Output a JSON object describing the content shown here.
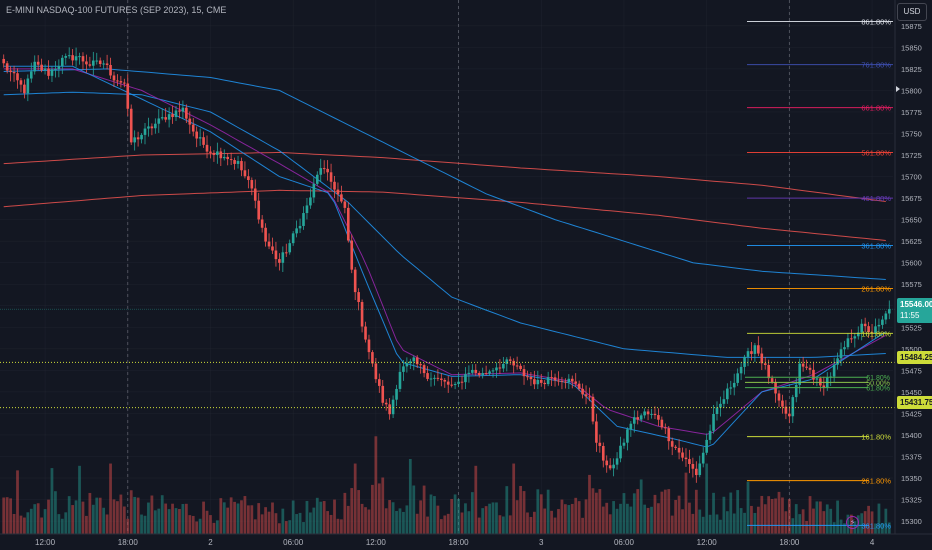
{
  "title": "E-MINI NASDAQ-100 FUTURES (SEP 2023), 15, CME",
  "currency_button": "USD",
  "colors": {
    "background": "#131722",
    "bull": "#26a69a",
    "bear": "#ef5350",
    "grid": "#2a2e39",
    "text": "#b2b5be"
  },
  "icons": [
    "lightning-icon"
  ],
  "price_tags": {
    "last_price": "15546.00",
    "countdown": "11:55",
    "level_1": "15484.25",
    "level_2": "15431.75"
  },
  "chart_data": {
    "type": "candlestick",
    "title": "E-MINI NASDAQ-100 FUTURES (SEP 2023), 15, CME",
    "ylim": [
      15285,
      15905
    ],
    "y_ticks": [
      15875,
      15850,
      15825,
      15800,
      15775,
      15750,
      15725,
      15700,
      15675,
      15650,
      15625,
      15600,
      15575,
      15550,
      15525,
      15500,
      15475,
      15450,
      15425,
      15400,
      15375,
      15350,
      15325,
      15300
    ],
    "x_ticks": [
      "12:00",
      "18:00",
      "2",
      "06:00",
      "12:00",
      "18:00",
      "3",
      "06:00",
      "12:00",
      "18:00",
      "4"
    ],
    "x_tick_bar_index": [
      12,
      36,
      60,
      84,
      108,
      132,
      156,
      180,
      204,
      228,
      252
    ],
    "session_separator_bar_index": [
      36,
      132,
      228
    ],
    "bars": 258,
    "anchors": {
      "close": [
        [
          0,
          15830
        ],
        [
          3,
          15815
        ],
        [
          6,
          15800
        ],
        [
          9,
          15830
        ],
        [
          13,
          15820
        ],
        [
          17,
          15835
        ],
        [
          21,
          15840
        ],
        [
          25,
          15830
        ],
        [
          29,
          15832
        ],
        [
          32,
          15815
        ],
        [
          35,
          15808
        ],
        [
          37,
          15740
        ],
        [
          42,
          15755
        ],
        [
          47,
          15770
        ],
        [
          52,
          15778
        ],
        [
          56,
          15745
        ],
        [
          60,
          15730
        ],
        [
          64,
          15725
        ],
        [
          68,
          15715
        ],
        [
          72,
          15685
        ],
        [
          76,
          15625
        ],
        [
          80,
          15600
        ],
        [
          84,
          15630
        ],
        [
          88,
          15665
        ],
        [
          92,
          15712
        ],
        [
          96,
          15688
        ],
        [
          99,
          15660
        ],
        [
          101,
          15590
        ],
        [
          104,
          15530
        ],
        [
          107,
          15480
        ],
        [
          110,
          15440
        ],
        [
          112,
          15425
        ],
        [
          115,
          15475
        ],
        [
          119,
          15485
        ],
        [
          123,
          15470
        ],
        [
          127,
          15462
        ],
        [
          131,
          15455
        ],
        [
          135,
          15475
        ],
        [
          139,
          15470
        ],
        [
          143,
          15480
        ],
        [
          147,
          15484
        ],
        [
          151,
          15470
        ],
        [
          155,
          15460
        ],
        [
          159,
          15468
        ],
        [
          163,
          15465
        ],
        [
          167,
          15455
        ],
        [
          170,
          15440
        ],
        [
          172,
          15395
        ],
        [
          175,
          15360
        ],
        [
          178,
          15372
        ],
        [
          182,
          15415
        ],
        [
          186,
          15425
        ],
        [
          190,
          15420
        ],
        [
          194,
          15390
        ],
        [
          198,
          15370
        ],
        [
          201,
          15355
        ],
        [
          203,
          15380
        ],
        [
          206,
          15420
        ],
        [
          210,
          15450
        ],
        [
          214,
          15480
        ],
        [
          218,
          15505
        ],
        [
          222,
          15468
        ],
        [
          225,
          15435
        ],
        [
          228,
          15420
        ],
        [
          231,
          15480
        ],
        [
          234,
          15475
        ],
        [
          237,
          15455
        ],
        [
          240,
          15470
        ],
        [
          243,
          15495
        ],
        [
          246,
          15515
        ],
        [
          249,
          15525
        ],
        [
          252,
          15520
        ],
        [
          254,
          15525
        ],
        [
          257,
          15546
        ]
      ],
      "volume": [
        [
          0,
          140
        ],
        [
          10,
          160
        ],
        [
          20,
          150
        ],
        [
          30,
          170
        ],
        [
          40,
          140
        ],
        [
          50,
          130
        ],
        [
          60,
          120
        ],
        [
          70,
          130
        ],
        [
          80,
          110
        ],
        [
          90,
          120
        ],
        [
          100,
          160
        ],
        [
          105,
          220
        ],
        [
          110,
          250
        ],
        [
          115,
          200
        ],
        [
          120,
          180
        ],
        [
          130,
          150
        ],
        [
          140,
          180
        ],
        [
          150,
          170
        ],
        [
          160,
          150
        ],
        [
          170,
          170
        ],
        [
          180,
          160
        ],
        [
          190,
          150
        ],
        [
          200,
          170
        ],
        [
          210,
          150
        ],
        [
          220,
          160
        ],
        [
          230,
          140
        ],
        [
          240,
          120
        ],
        [
          250,
          110
        ],
        [
          257,
          120
        ]
      ]
    },
    "spikes": [
      [
        4,
        280
      ],
      [
        14,
        290
      ],
      [
        22,
        300
      ],
      [
        31,
        310
      ],
      [
        102,
        310
      ],
      [
        108,
        430
      ],
      [
        118,
        330
      ],
      [
        137,
        300
      ],
      [
        148,
        310
      ],
      [
        170,
        260
      ],
      [
        185,
        240
      ],
      [
        198,
        270
      ],
      [
        204,
        310
      ],
      [
        216,
        230
      ]
    ],
    "moving_averages": [
      {
        "color": "#ef5350",
        "points": [
          [
            0,
            15715
          ],
          [
            40,
            15725
          ],
          [
            80,
            15728
          ],
          [
            110,
            15722
          ],
          [
            150,
            15710
          ],
          [
            190,
            15700
          ],
          [
            220,
            15690
          ],
          [
            258,
            15670
          ]
        ]
      },
      {
        "color": "#ef5350",
        "points": [
          [
            0,
            15665
          ],
          [
            40,
            15678
          ],
          [
            80,
            15684
          ],
          [
            110,
            15682
          ],
          [
            150,
            15670
          ],
          [
            190,
            15655
          ],
          [
            220,
            15640
          ],
          [
            258,
            15625
          ]
        ]
      },
      {
        "color": "#2196f3",
        "points": [
          [
            0,
            15822
          ],
          [
            30,
            15825
          ],
          [
            60,
            15815
          ],
          [
            80,
            15800
          ],
          [
            100,
            15760
          ],
          [
            120,
            15720
          ],
          [
            140,
            15680
          ],
          [
            160,
            15650
          ],
          [
            180,
            15625
          ],
          [
            200,
            15600
          ],
          [
            220,
            15590
          ],
          [
            258,
            15580
          ]
        ]
      },
      {
        "color": "#2196f3",
        "points": [
          [
            0,
            15795
          ],
          [
            20,
            15798
          ],
          [
            40,
            15795
          ],
          [
            60,
            15775
          ],
          [
            80,
            15730
          ],
          [
            100,
            15670
          ],
          [
            115,
            15610
          ],
          [
            130,
            15560
          ],
          [
            150,
            15530
          ],
          [
            180,
            15500
          ],
          [
            210,
            15490
          ],
          [
            235,
            15490
          ],
          [
            258,
            15495
          ]
        ]
      },
      {
        "color": "#9c27b0",
        "points": [
          [
            0,
            15825
          ],
          [
            20,
            15825
          ],
          [
            40,
            15800
          ],
          [
            60,
            15760
          ],
          [
            80,
            15715
          ],
          [
            95,
            15680
          ],
          [
            105,
            15600
          ],
          [
            115,
            15500
          ],
          [
            130,
            15470
          ],
          [
            150,
            15472
          ],
          [
            165,
            15462
          ],
          [
            175,
            15430
          ],
          [
            190,
            15410
          ],
          [
            205,
            15400
          ],
          [
            220,
            15450
          ],
          [
            235,
            15470
          ],
          [
            258,
            15520
          ]
        ]
      },
      {
        "color": "#2196f3",
        "points": [
          [
            0,
            15828
          ],
          [
            20,
            15828
          ],
          [
            40,
            15790
          ],
          [
            60,
            15752
          ],
          [
            80,
            15700
          ],
          [
            95,
            15680
          ],
          [
            105,
            15580
          ],
          [
            115,
            15485
          ],
          [
            130,
            15468
          ],
          [
            150,
            15470
          ],
          [
            165,
            15460
          ],
          [
            178,
            15410
          ],
          [
            195,
            15395
          ],
          [
            205,
            15385
          ],
          [
            220,
            15450
          ],
          [
            235,
            15465
          ],
          [
            258,
            15525
          ]
        ]
      }
    ],
    "fib_extension_top": [
      {
        "label": "861.80%",
        "price": 15880,
        "color": "#e0e3eb"
      },
      {
        "label": "761.80%",
        "price": 15830,
        "color": "#3f51b5"
      },
      {
        "label": "661.80%",
        "price": 15780,
        "color": "#e91e63"
      },
      {
        "label": "561.80%",
        "price": 15728,
        "color": "#f44336"
      },
      {
        "label": "461.80%",
        "price": 15675,
        "color": "#673ab7"
      },
      {
        "label": "361.80%",
        "price": 15620,
        "color": "#2196f3"
      },
      {
        "label": "261.80%",
        "price": 15570,
        "color": "#ff9800"
      },
      {
        "label": "161.80%",
        "price": 15518,
        "color": "#cddc39"
      }
    ],
    "fib_inner": [
      {
        "label": "61.80%",
        "price": 15467,
        "color": "#4caf50"
      },
      {
        "label": "50.00%",
        "price": 15461,
        "color": "#8bc34a"
      },
      {
        "label": "61.80%",
        "price": 15455,
        "color": "#4caf50"
      }
    ],
    "fib_extension_bottom": [
      {
        "label": "161.80%",
        "price": 15398,
        "color": "#cddc39"
      },
      {
        "label": "261.80%",
        "price": 15347,
        "color": "#ff9800"
      },
      {
        "label": "361.80%",
        "price": 15295,
        "color": "#2196f3"
      }
    ],
    "dotted_price_lines": [
      15484.25,
      15431.75
    ],
    "last_price": 15546.0
  }
}
